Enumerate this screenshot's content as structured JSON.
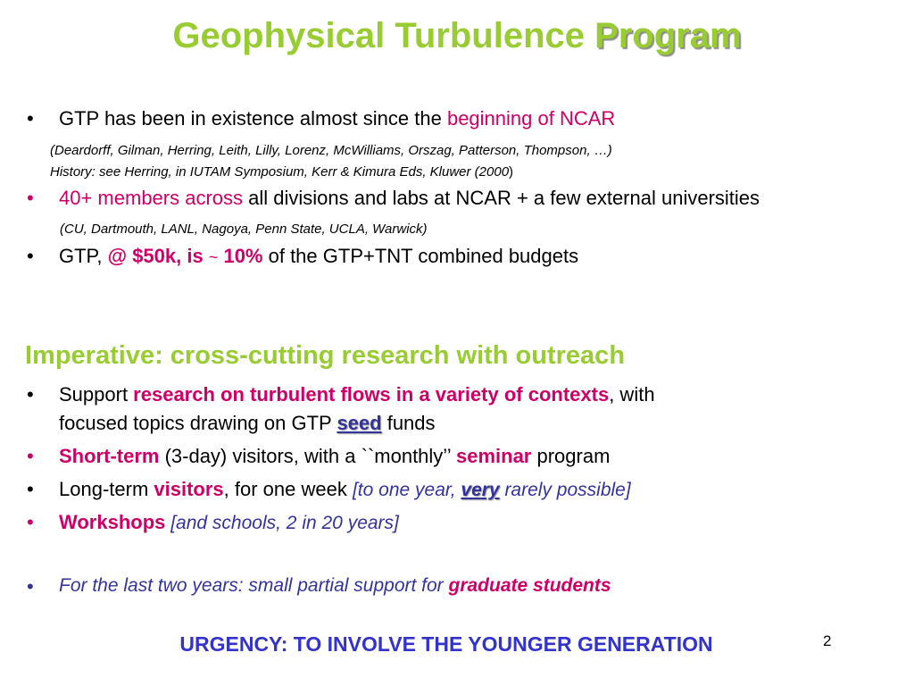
{
  "title": {
    "part1": "Geophysical Turbulence ",
    "part2": "Program"
  },
  "bullet_char": "•",
  "b1": {
    "text": "GTP has been in existence almost since the ",
    "highlight": "beginning of NCAR"
  },
  "note1": "(Deardorff, Gilman, Herring, Leith, Lilly, Lorenz, McWilliams, Orszag, Patterson, Thompson, …)",
  "note2": "History: see Herring, in IUTAM Symposium, Kerr & Kimura Eds, Kluwer (2000",
  "note2_end": ")",
  "b2": {
    "highlight": "40+ members across",
    "text": " all divisions and labs at NCAR + a few external universities"
  },
  "note3": "(CU, Dartmouth, LANL, Nagoya, Penn State, UCLA, Warwick)",
  "b3": {
    "text1": "GTP, ",
    "highlight1": "@ $50k,  is ",
    "tilde": "~",
    "highlight2": " 10%",
    "text2": " of the GTP+TNT combined budgets"
  },
  "heading": "Imperative: cross-cutting research with outreach",
  "b4": {
    "text1": "Support ",
    "highlight": "research on turbulent flows in a variety of contexts",
    "text2": ", with",
    "line2_text": "focused topics drawing on GTP ",
    "seed": "seed",
    "line2_end": " funds"
  },
  "b5": {
    "highlight1": "Short-term",
    "text1": " (3-day) visitors, with a ``monthly’’ ",
    "highlight2": "seminar",
    "text2": " program"
  },
  "b6": {
    "text1": "Long-term ",
    "highlight": "visitors",
    "text2": ", for one week ",
    "italic1": "[to one year, ",
    "very": "very",
    "italic2": " rarely possible]"
  },
  "b7": {
    "highlight": "Workshops",
    "italic": " [and schools, 2 in 20 years]"
  },
  "b8": {
    "italic": "For the last two years: small partial support for ",
    "highlight": "graduate students"
  },
  "urgency": "URGENCY: TO INVOLVE THE YOUNGER GENERATION",
  "page_number": "2",
  "colors": {
    "title_green": "#99cc33",
    "magenta": "#cc0066",
    "navy": "#333399",
    "urgency_blue": "#3333cc"
  }
}
